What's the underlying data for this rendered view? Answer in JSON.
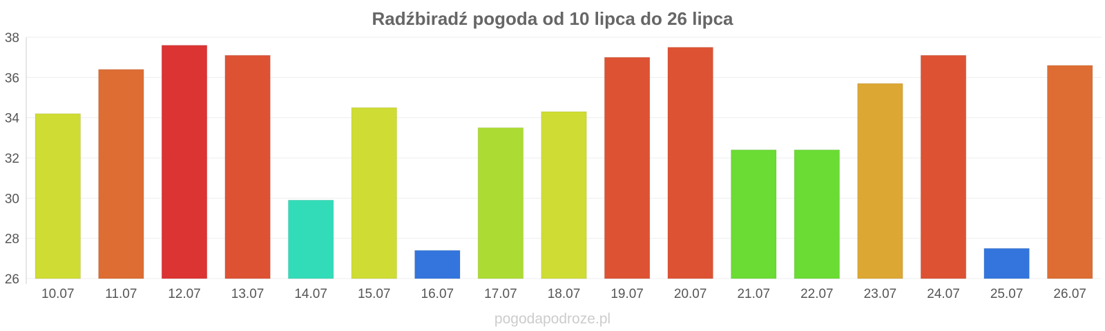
{
  "chart_data": {
    "type": "bar",
    "title": "Radźbiradź pogoda od 10 lipca do 26 lipca",
    "xlabel": "",
    "ylabel": "",
    "categories": [
      "10.07",
      "11.07",
      "12.07",
      "13.07",
      "14.07",
      "15.07",
      "16.07",
      "17.07",
      "18.07",
      "19.07",
      "20.07",
      "21.07",
      "22.07",
      "23.07",
      "24.07",
      "25.07",
      "26.07"
    ],
    "values": [
      34.2,
      36.4,
      37.6,
      37.1,
      29.9,
      34.5,
      27.4,
      33.5,
      34.3,
      37.0,
      37.5,
      32.4,
      32.4,
      35.7,
      37.1,
      27.5,
      36.6
    ],
    "colors": [
      "#cfdc33",
      "#dd6d33",
      "#dc3333",
      "#dd5233",
      "#33dcb8",
      "#cfdc33",
      "#3375dc",
      "#acdc33",
      "#cfdc33",
      "#dd5233",
      "#dd5233",
      "#6adc33",
      "#6adc33",
      "#dca733",
      "#dd5233",
      "#3375dc",
      "#dd6d33"
    ],
    "ylim": [
      26,
      38
    ],
    "yticks": [
      26,
      28,
      30,
      32,
      34,
      36,
      38
    ],
    "grid": true,
    "legend": "none"
  },
  "footer": {
    "watermark": "pogodapodroze.pl"
  }
}
